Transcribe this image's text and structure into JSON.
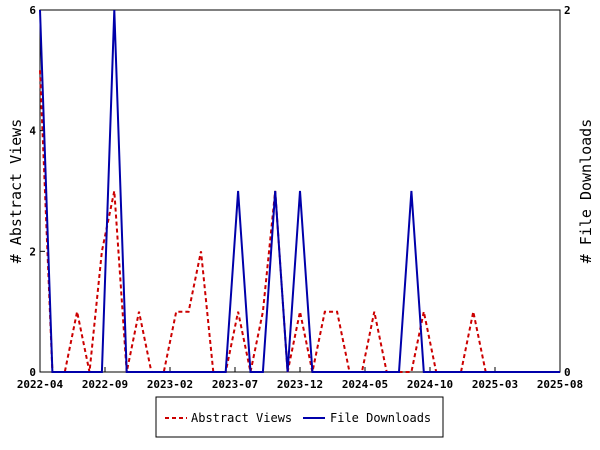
{
  "chart_data": {
    "type": "line",
    "title": "",
    "xlabel": "",
    "ylabel_left": "# Abstract Views",
    "ylabel_right": "# File Downloads",
    "x_ticks": [
      "2022-04",
      "2022-09",
      "2023-02",
      "2023-07",
      "2023-12",
      "2024-05",
      "2024-10",
      "2025-03",
      "2025-08"
    ],
    "ylim_left": [
      0,
      6
    ],
    "yticks_left": [
      0,
      2,
      4,
      6
    ],
    "ylim_right": [
      0,
      2
    ],
    "yticks_right": [
      0,
      2
    ],
    "legend_position": "bottom",
    "series": [
      {
        "name": "Abstract Views",
        "axis": "left",
        "color": "#cc0000",
        "style": "dashed",
        "values": [
          5,
          0,
          0,
          1,
          0,
          2,
          3,
          0,
          1,
          0,
          0,
          1,
          1,
          2,
          0,
          0,
          1,
          0,
          1,
          3,
          0,
          1,
          0,
          1,
          1,
          0,
          0,
          1,
          0,
          0,
          0,
          1,
          0,
          0,
          0,
          1,
          0,
          0,
          0,
          0,
          0,
          0,
          0
        ]
      },
      {
        "name": "File Downloads",
        "axis": "right",
        "color": "#0000aa",
        "style": "solid",
        "values": [
          2,
          0,
          0,
          0,
          0,
          0,
          2,
          0,
          0,
          0,
          0,
          0,
          0,
          0,
          0,
          0,
          1,
          0,
          0,
          1,
          0,
          1,
          0,
          0,
          0,
          0,
          0,
          0,
          0,
          0,
          1,
          0,
          0,
          0,
          0,
          0,
          0,
          0,
          0,
          0,
          0,
          0,
          0
        ]
      }
    ]
  }
}
